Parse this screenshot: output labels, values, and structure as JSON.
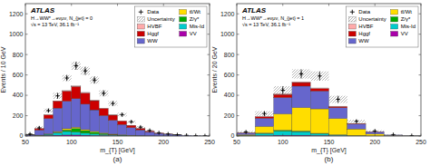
{
  "chart_data": [
    {
      "type": "bar",
      "stacked": true,
      "grid": false,
      "legend": "upper right",
      "title": "ATLAS",
      "subtitle": [
        "H→WW*→eνμν, N_{jet} = 0",
        "√s = 13 TeV, 36.1 fb⁻¹"
      ],
      "annotation": "(a)",
      "xlabel": "m_{T} [GeV]",
      "ylabel": "Events / 10 GeV",
      "bins": [
        50,
        60,
        70,
        80,
        90,
        100,
        110,
        120,
        130,
        140,
        150,
        160,
        170,
        180,
        190,
        200,
        210,
        220,
        230,
        240,
        250
      ],
      "xlim": [
        50,
        250
      ],
      "ylim": [
        0,
        1300
      ],
      "xticks": [
        50,
        100,
        150,
        200,
        250
      ],
      "yticks": [
        0,
        200,
        400,
        600,
        800,
        1000,
        1200
      ],
      "series": [
        {
          "name": "VV",
          "color": "#aa00aa",
          "values": [
            2,
            4,
            6,
            8,
            10,
            10,
            8,
            6,
            5,
            4,
            3,
            2,
            1,
            1,
            0,
            0,
            0,
            0,
            0,
            0
          ]
        },
        {
          "name": "Mis-Id",
          "color": "#00cccc",
          "values": [
            0,
            2,
            10,
            25,
            35,
            30,
            20,
            15,
            10,
            6,
            3,
            2,
            1,
            0,
            0,
            0,
            0,
            0,
            0,
            0
          ]
        },
        {
          "name": "Z/γ*",
          "color": "#00aa00",
          "values": [
            0,
            1,
            2,
            3,
            15,
            35,
            25,
            18,
            10,
            5,
            3,
            1,
            1,
            0,
            0,
            0,
            0,
            0,
            0,
            0
          ]
        },
        {
          "name": "tt̄/Wt",
          "color": "#ffdd00",
          "values": [
            0,
            2,
            4,
            8,
            12,
            12,
            10,
            8,
            6,
            5,
            4,
            3,
            2,
            2,
            1,
            1,
            0,
            0,
            0,
            0
          ]
        },
        {
          "name": "WW",
          "color": "#6666cc",
          "values": [
            8,
            50,
            150,
            230,
            270,
            280,
            250,
            210,
            170,
            135,
            100,
            75,
            55,
            38,
            25,
            17,
            10,
            6,
            3,
            2
          ]
        },
        {
          "name": "Hggf",
          "color": "#cc0000",
          "values": [
            5,
            15,
            35,
            70,
            100,
            120,
            110,
            90,
            70,
            50,
            35,
            22,
            14,
            8,
            4,
            2,
            1,
            0,
            0,
            0
          ]
        },
        {
          "name": "HVBF",
          "color": "#ffaaaa",
          "values": [
            0,
            0,
            1,
            2,
            4,
            5,
            5,
            4,
            3,
            2,
            2,
            1,
            1,
            0,
            0,
            0,
            0,
            0,
            0,
            0
          ]
        },
        {
          "name": "Data",
          "type": "errorbar",
          "marker": "plus",
          "color": "#000000",
          "values": [
            20,
            80,
            250,
            395,
            570,
            690,
            640,
            550,
            420,
            320,
            210,
            140,
            88,
            55,
            32,
            20,
            12,
            7,
            4,
            2
          ]
        },
        {
          "name": "Uncertainty",
          "type": "band",
          "color": "#888888",
          "low": [
            15,
            65,
            230,
            365,
            540,
            650,
            600,
            515,
            390,
            295,
            192,
            128,
            79,
            48,
            28,
            17,
            10,
            6,
            3,
            1
          ],
          "high": [
            25,
            95,
            270,
            425,
            600,
            730,
            680,
            585,
            450,
            345,
            228,
            152,
            97,
            62,
            36,
            23,
            14,
            8,
            5,
            3
          ]
        }
      ]
    },
    {
      "type": "bar",
      "stacked": true,
      "grid": false,
      "legend": "upper right",
      "title": "ATLAS",
      "subtitle": [
        "H→WW*→eνμν, N_{jet} = 1",
        "√s = 13 TeV, 36.1 fb⁻¹"
      ],
      "annotation": "(b)",
      "xlabel": "m_{T} [GeV]",
      "ylabel": "Events / 20 GeV",
      "bins": [
        50,
        70,
        90,
        110,
        130,
        150,
        170,
        190,
        210,
        230,
        250
      ],
      "xlim": [
        50,
        250
      ],
      "ylim": [
        0,
        1300
      ],
      "xticks": [
        50,
        100,
        150,
        200,
        250
      ],
      "yticks": [
        0,
        200,
        400,
        600,
        800,
        1000,
        1200
      ],
      "series": [
        {
          "name": "VV",
          "color": "#aa00aa",
          "values": [
            2,
            5,
            8,
            8,
            6,
            4,
            2,
            1,
            0,
            0
          ]
        },
        {
          "name": "Mis-Id",
          "color": "#00cccc",
          "values": [
            3,
            20,
            40,
            35,
            18,
            7,
            2,
            0,
            0,
            0
          ]
        },
        {
          "name": "Z/γ*",
          "color": "#00aa00",
          "values": [
            1,
            5,
            10,
            7,
            3,
            2,
            1,
            0,
            0,
            0
          ]
        },
        {
          "name": "tt̄/Wt",
          "color": "#ffdd00",
          "values": [
            8,
            65,
            160,
            230,
            240,
            160,
            65,
            20,
            5,
            1
          ]
        },
        {
          "name": "WW",
          "color": "#6666cc",
          "values": [
            15,
            80,
            160,
            210,
            175,
            105,
            48,
            20,
            6,
            2
          ]
        },
        {
          "name": "Hggf",
          "color": "#cc0000",
          "values": [
            3,
            15,
            30,
            35,
            25,
            12,
            5,
            2,
            0,
            0
          ]
        },
        {
          "name": "HVBF",
          "color": "#ffaaaa",
          "values": [
            1,
            4,
            8,
            8,
            5,
            3,
            1,
            0,
            0,
            0
          ]
        },
        {
          "name": "Data",
          "type": "errorbar",
          "marker": "plus",
          "color": "#000000",
          "values": [
            40,
            220,
            450,
            610,
            590,
            360,
            145,
            50,
            14,
            4
          ]
        },
        {
          "name": "Uncertainty",
          "type": "band",
          "color": "#888888",
          "low": [
            30,
            195,
            410,
            565,
            545,
            325,
            130,
            43,
            11,
            3
          ],
          "high": [
            50,
            245,
            490,
            655,
            635,
            395,
            160,
            57,
            17,
            5
          ]
        }
      ]
    }
  ]
}
